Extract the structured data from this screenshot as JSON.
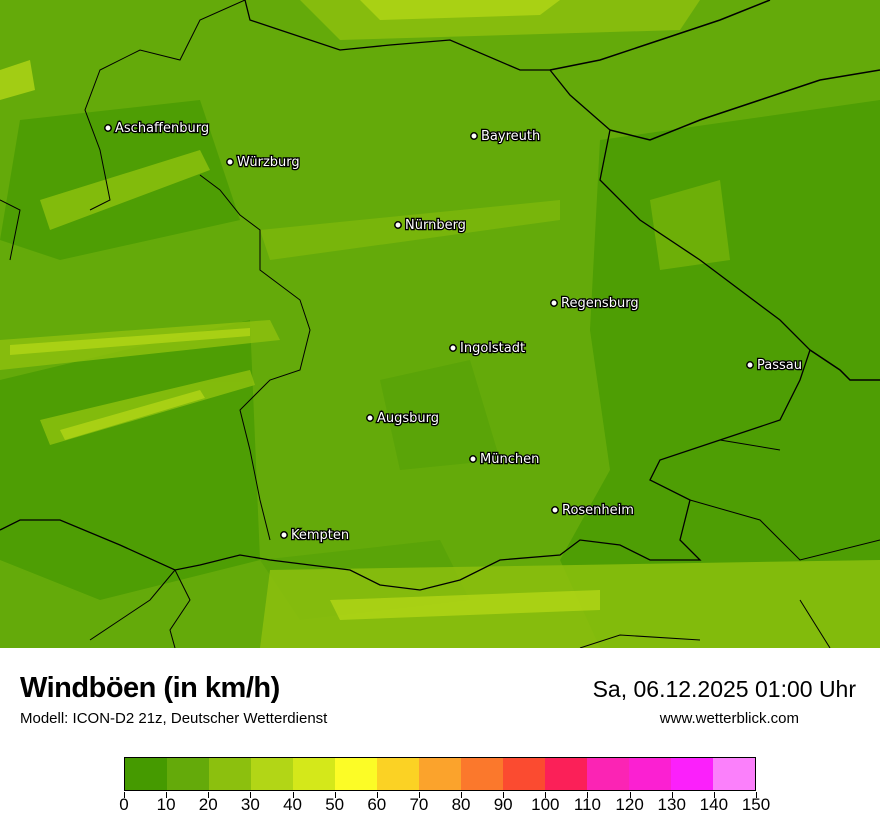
{
  "title": "Windböen (in km/h)",
  "subtitle": "Modell: ICON-D2 21z, Deutscher Wetterdienst",
  "datetime": "Sa, 06.12.2025 01:00 Uhr",
  "website": "www.wetterblick.com",
  "cities": [
    {
      "name": "Aschaffenburg"
    },
    {
      "name": "Würzburg"
    },
    {
      "name": "Bayreuth"
    },
    {
      "name": "Nürnberg"
    },
    {
      "name": "Regensburg"
    },
    {
      "name": "Ingolstadt"
    },
    {
      "name": "Passau"
    },
    {
      "name": "Augsburg"
    },
    {
      "name": "München"
    },
    {
      "name": "Rosenheim"
    },
    {
      "name": "Kempten"
    }
  ],
  "legend": {
    "unit": "km/h",
    "ticks": [
      "0",
      "10",
      "20",
      "30",
      "40",
      "50",
      "60",
      "70",
      "80",
      "90",
      "100",
      "110",
      "120",
      "130",
      "140",
      "150"
    ],
    "colors": [
      "#459a00",
      "#64aa0a",
      "#8cc00e",
      "#b2d616",
      "#d4e81a",
      "#fcfc26",
      "#fbd224",
      "#fba32c",
      "#fb782c",
      "#fb4b30",
      "#fb2058",
      "#fb24b4",
      "#fb20d2",
      "#fb20fb",
      "#fb80fb"
    ]
  }
}
